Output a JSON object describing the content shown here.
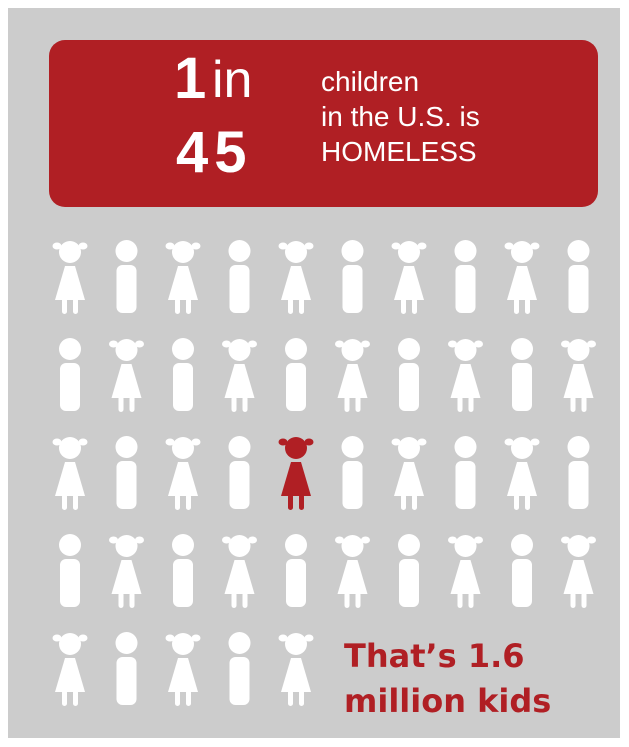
{
  "colors": {
    "panel": "#cccccc",
    "accent": "#b01f24",
    "figure": "#ffffff"
  },
  "banner": {
    "numerator": "1",
    "connector": "in",
    "denominator": "45",
    "lines": [
      "children",
      "in the U.S. is",
      "HOMELESS"
    ]
  },
  "grid": {
    "rows": 5,
    "columns": 10,
    "icons": [
      [
        "girl",
        "boy",
        "girl",
        "boy",
        "girl",
        "boy",
        "girl",
        "boy",
        "girl",
        "boy"
      ],
      [
        "boy",
        "girl",
        "boy",
        "girl",
        "boy",
        "girl",
        "boy",
        "girl",
        "boy",
        "girl"
      ],
      [
        "girl",
        "boy",
        "girl",
        "boy",
        "girl",
        "boy",
        "girl",
        "boy",
        "girl",
        "boy"
      ],
      [
        "boy",
        "girl",
        "boy",
        "girl",
        "boy",
        "girl",
        "boy",
        "girl",
        "boy",
        "girl"
      ],
      [
        "girl",
        "boy",
        "girl",
        "boy",
        "girl"
      ]
    ],
    "highlight": {
      "row": 2,
      "column": 4
    }
  },
  "callout": {
    "lines": [
      "That’s 1.6",
      "million kids"
    ]
  }
}
